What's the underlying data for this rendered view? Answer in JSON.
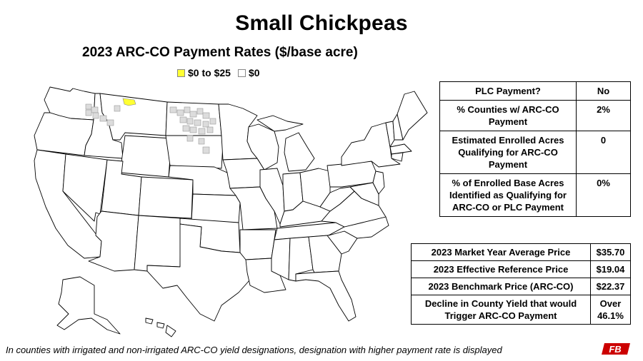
{
  "title": "Small Chickpeas",
  "subtitle": "2023 ARC-CO Payment Rates ($/base acre)",
  "legend": [
    {
      "label": "$0 to $25",
      "color": "#ffff33"
    },
    {
      "label": "$0",
      "color": "#ffffff"
    }
  ],
  "map": {
    "highlight_color": "#ffff33",
    "gray_county_color": "#dcdcdc",
    "state_fill": "#ffffff",
    "outline_color": "#000000"
  },
  "program_table": [
    {
      "label": "PLC Payment?",
      "value": "No"
    },
    {
      "label": "% Counties w/ ARC-CO Payment",
      "value": "2%"
    },
    {
      "label": "Estimated Enrolled Acres Qualifying for ARC-CO Payment",
      "value": "0"
    },
    {
      "label": "% of Enrolled Base Acres Identified as Qualifying for ARC-CO or PLC Payment",
      "value": "0%"
    }
  ],
  "price_table": [
    {
      "label": "2023 Market Year Average Price",
      "value": "$35.70"
    },
    {
      "label": "2023 Effective Reference Price",
      "value": "$19.04"
    },
    {
      "label": "2023 Benchmark Price (ARC-CO)",
      "value": "$22.37"
    },
    {
      "label": "Decline in County Yield that would Trigger ARC-CO Payment",
      "value": "Over 46.1%"
    }
  ],
  "footnote": "In counties with irrigated and non-irrigated ARC-CO yield designations, designation with higher payment rate is displayed",
  "logo": {
    "text": "FB",
    "color": "#cc0000"
  }
}
